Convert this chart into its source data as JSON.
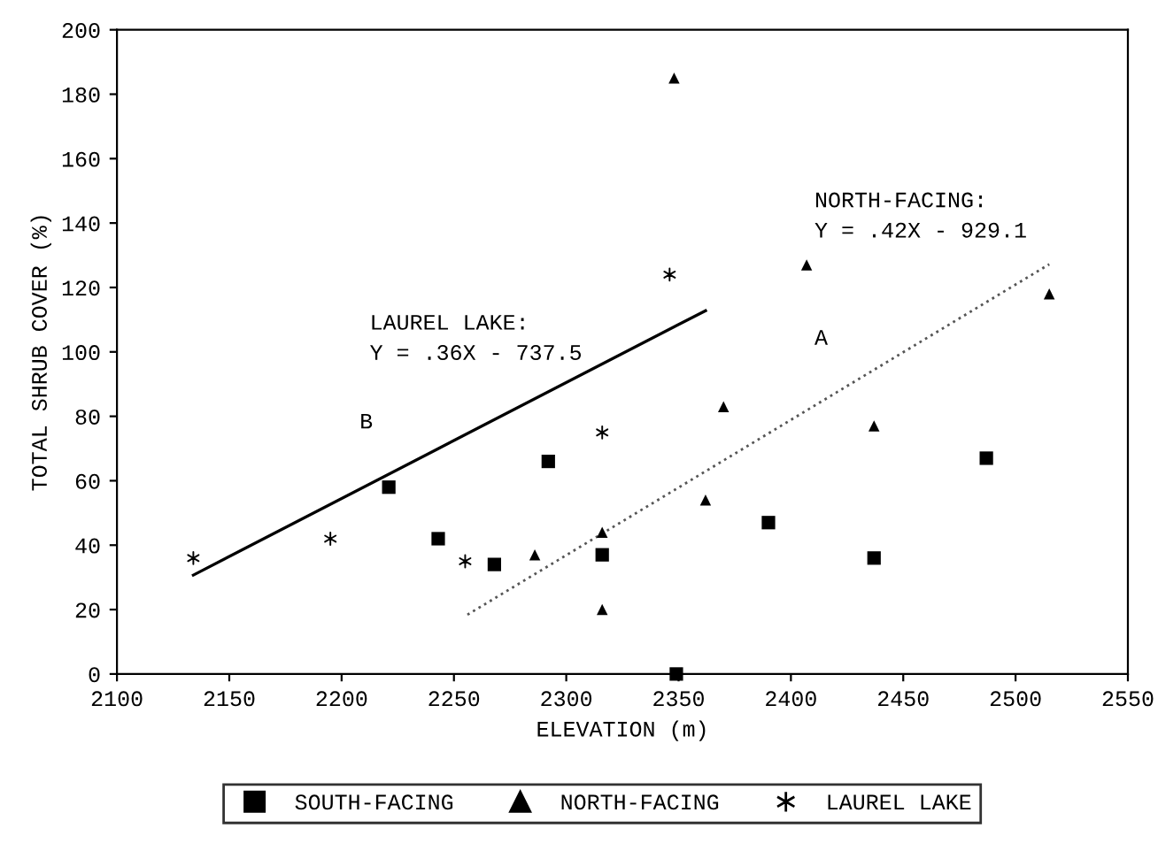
{
  "chart_data": {
    "type": "scatter",
    "xlabel": "ELEVATION (m)",
    "ylabel": "TOTAL SHRUB COVER (%)",
    "xlim": [
      2100,
      2550
    ],
    "xticks": [
      2100,
      2150,
      2200,
      2250,
      2300,
      2350,
      2400,
      2450,
      2500,
      2550
    ],
    "ylim": [
      0,
      200
    ],
    "yticks": [
      0,
      20,
      40,
      60,
      80,
      100,
      120,
      140,
      160,
      180,
      200
    ],
    "grid": false,
    "legend": "bottom",
    "series": [
      {
        "name": "SOUTH-FACING",
        "color": "#000000",
        "marker": "square",
        "x": [
          2221,
          2243,
          2268,
          2292,
          2316,
          2349,
          2390,
          2437,
          2487
        ],
        "values": [
          58,
          42,
          34,
          66,
          37,
          0,
          47,
          36,
          67
        ]
      },
      {
        "name": "NORTH-FACING",
        "color": "#000000",
        "marker": "triangle",
        "x": [
          2286,
          2316,
          2316,
          2348,
          2362,
          2370,
          2407,
          2437,
          2515
        ],
        "values": [
          37,
          44,
          20,
          185,
          54,
          83,
          127,
          77,
          118
        ]
      },
      {
        "name": "LAUREL LAKE",
        "color": "#000000",
        "marker": "cross",
        "x": [
          2134,
          2195,
          2255,
          2316,
          2346
        ],
        "values": [
          36,
          42,
          35,
          75,
          124
        ]
      },
      {
        "type": "line",
        "color": "#000000",
        "line_style": "solid",
        "marker": "none",
        "x": [
          2134,
          2362
        ],
        "values": [
          30.7,
          112.8
        ]
      },
      {
        "type": "line",
        "color": "#555555",
        "line_style": "dotted",
        "marker": "none",
        "x": [
          2256,
          2515
        ],
        "values": [
          18.4,
          127.2
        ]
      }
    ],
    "annotations": [
      "LAUREL LAKE:\nY = .36X - 737.5",
      "NORTH-FACING:\nY = .42X - 929.1",
      "B",
      "A"
    ]
  }
}
